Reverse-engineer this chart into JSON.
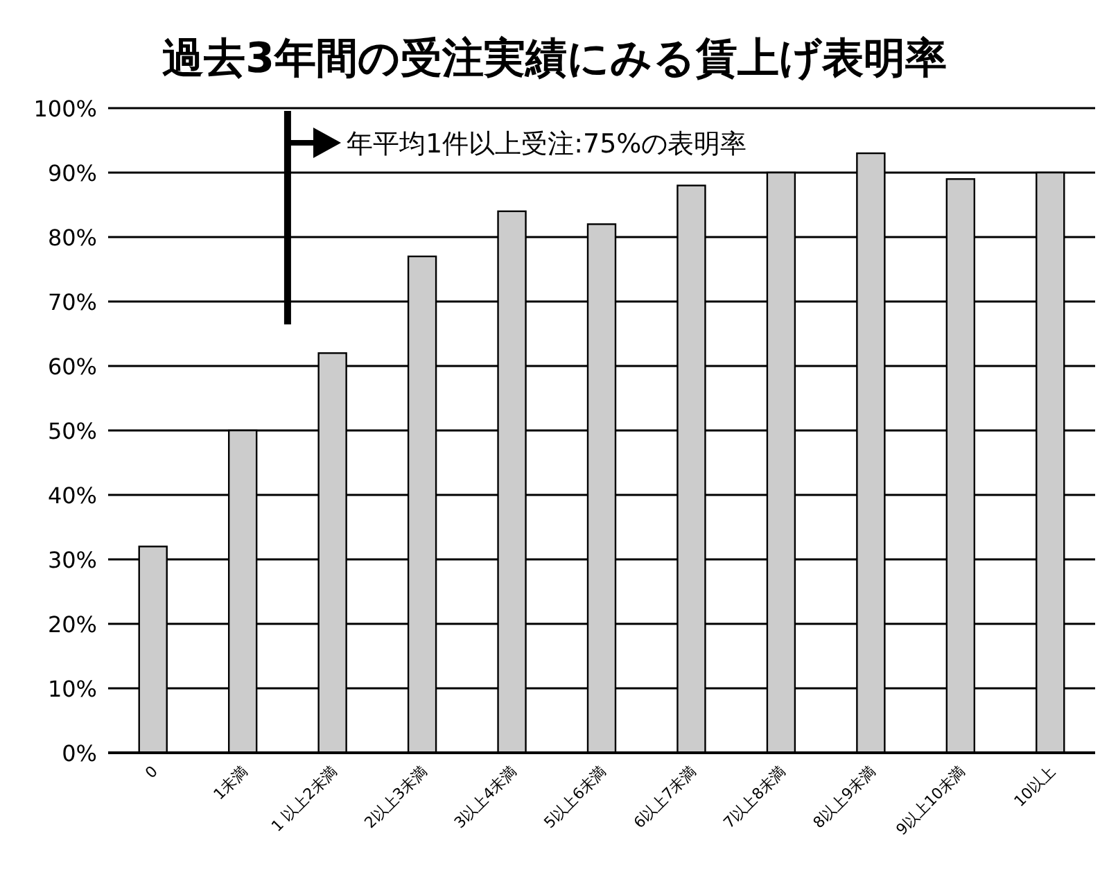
{
  "chart_data": {
    "type": "bar",
    "title": "過去3年間の受注実績にみる賃上げ表明率",
    "categories": [
      "0",
      "1未満",
      "1 以上2未満",
      "2以上3未満",
      "3以上4未満",
      "5以上6未満",
      "6以上7未満",
      "7以上8未満",
      "8以上9未満",
      "9以上10未満",
      "10以上"
    ],
    "values": [
      32,
      50,
      62,
      77,
      84,
      82,
      88,
      90,
      93,
      89,
      90
    ],
    "color": "#cccccc",
    "ylim": [
      0,
      100
    ],
    "yticks": [
      {
        "value": 0,
        "label": "0%"
      },
      {
        "value": 10,
        "label": "10%"
      },
      {
        "value": 20,
        "label": "20%"
      },
      {
        "value": 30,
        "label": "30%"
      },
      {
        "value": 40,
        "label": "40%"
      },
      {
        "value": 50,
        "label": "50%"
      },
      {
        "value": 60,
        "label": "60%"
      },
      {
        "value": 70,
        "label": "70%"
      },
      {
        "value": 80,
        "label": "80%"
      },
      {
        "value": 90,
        "label": "90%"
      },
      {
        "value": 100,
        "label": "100%"
      }
    ],
    "grid": "y",
    "annotations": [
      "年平均1件以上受注:75%の表明率"
    ]
  }
}
